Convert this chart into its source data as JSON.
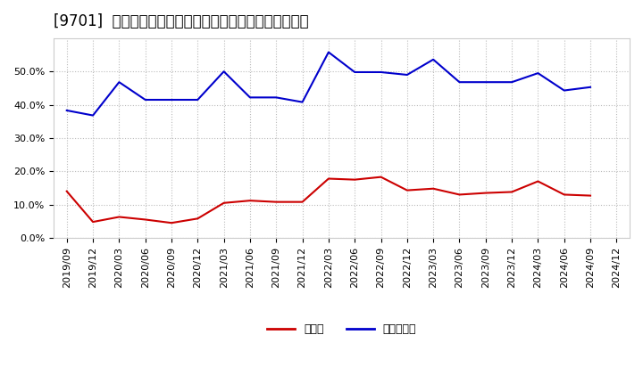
{
  "title": "[9701]  現預金、有利子負債の総資産に対する比率の推移",
  "x_labels": [
    "2019/09",
    "2019/12",
    "2020/03",
    "2020/06",
    "2020/09",
    "2020/12",
    "2021/03",
    "2021/06",
    "2021/09",
    "2021/12",
    "2022/03",
    "2022/06",
    "2022/09",
    "2022/12",
    "2023/03",
    "2023/06",
    "2023/09",
    "2023/12",
    "2024/03",
    "2024/06",
    "2024/09",
    "2024/12"
  ],
  "cash": [
    0.14,
    0.048,
    0.063,
    0.055,
    0.045,
    0.058,
    0.105,
    0.112,
    0.108,
    0.108,
    0.178,
    0.175,
    0.183,
    0.143,
    0.148,
    0.13,
    0.135,
    0.138,
    0.17,
    0.13,
    0.127,
    null
  ],
  "interest_bearing_debt": [
    0.383,
    0.368,
    0.468,
    0.415,
    0.415,
    0.415,
    0.5,
    0.422,
    0.422,
    0.408,
    0.558,
    0.498,
    0.498,
    0.49,
    0.536,
    0.468,
    0.468,
    0.468,
    0.495,
    0.443,
    0.453,
    null
  ],
  "cash_color": "#cc0000",
  "debt_color": "#0000cc",
  "background_color": "#ffffff",
  "grid_color": "#bbbbbb",
  "ylim": [
    0.0,
    0.6
  ],
  "yticks": [
    0.0,
    0.1,
    0.2,
    0.3,
    0.4,
    0.5
  ],
  "legend_cash": "現預金",
  "legend_debt": "有利子負債",
  "title_fontsize": 12,
  "tick_fontsize": 8,
  "legend_fontsize": 9
}
